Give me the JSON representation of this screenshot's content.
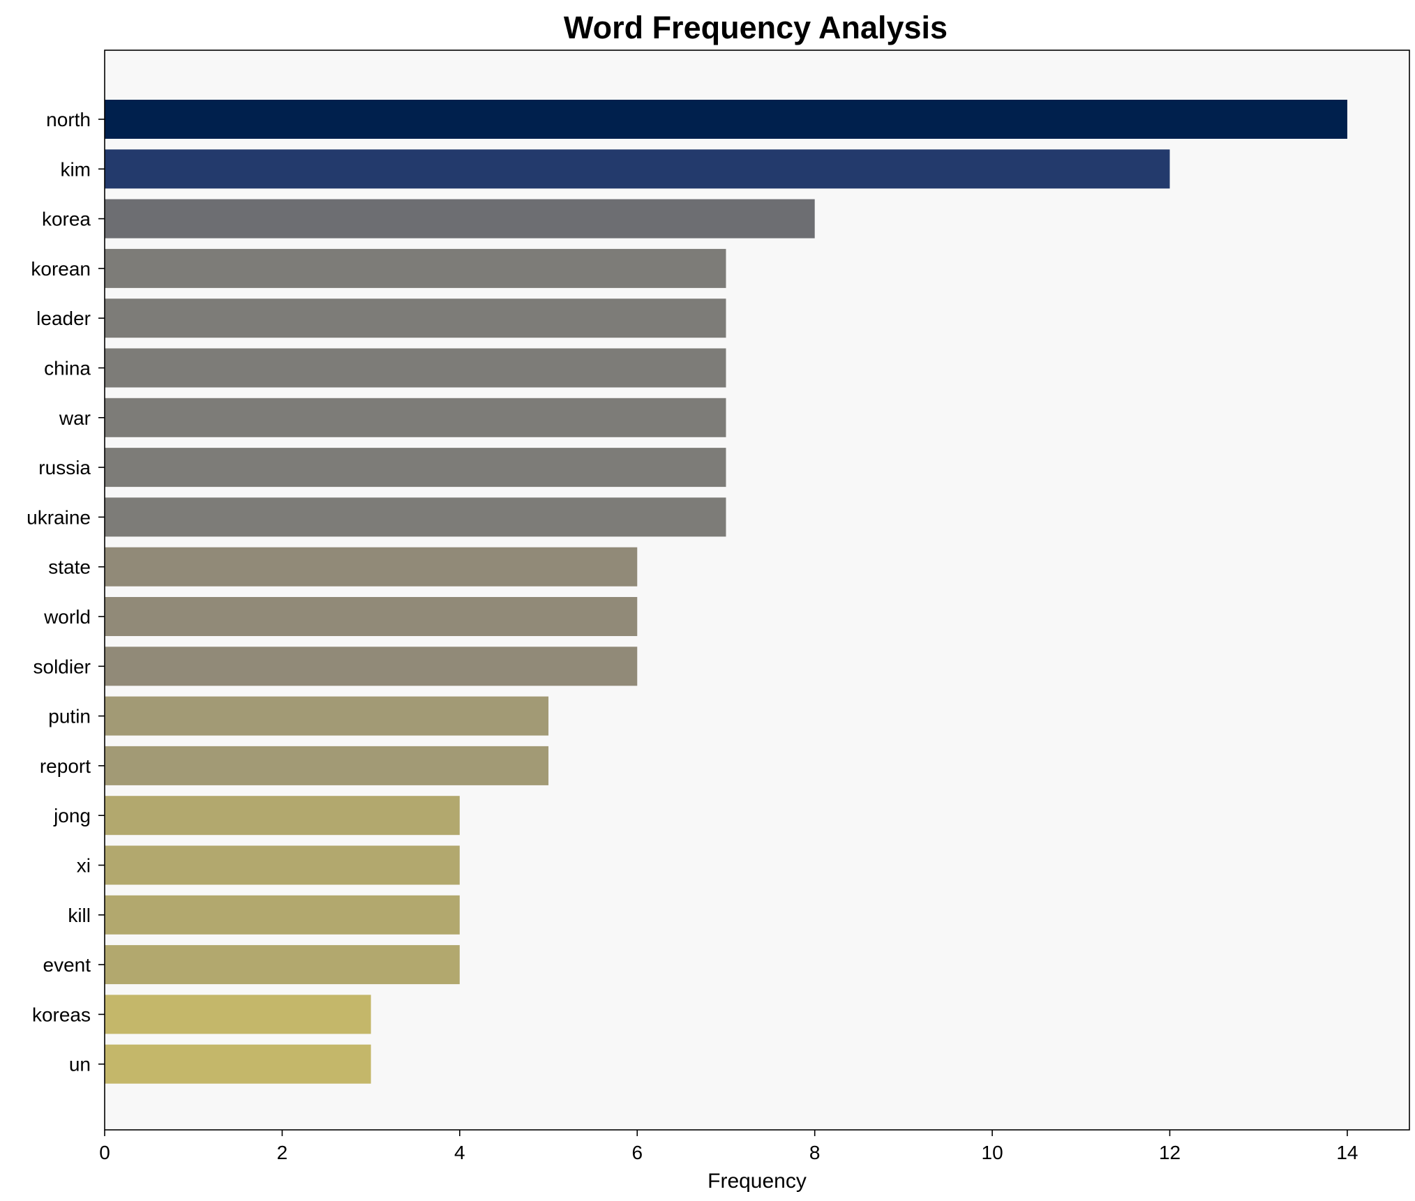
{
  "chart_data": {
    "type": "bar",
    "orientation": "horizontal",
    "title": "Word Frequency Analysis",
    "xlabel": "Frequency",
    "ylabel": "",
    "xlim": [
      0,
      14.7
    ],
    "xticks": [
      0,
      2,
      4,
      6,
      8,
      10,
      12,
      14
    ],
    "grid": false,
    "legend": "none",
    "plot_background": "#f8f8f8",
    "categories": [
      "north",
      "kim",
      "korea",
      "korean",
      "leader",
      "china",
      "war",
      "russia",
      "ukraine",
      "state",
      "world",
      "soldier",
      "putin",
      "report",
      "jong",
      "xi",
      "kill",
      "event",
      "koreas",
      "un"
    ],
    "values": [
      14,
      12,
      8,
      7,
      7,
      7,
      7,
      7,
      7,
      6,
      6,
      6,
      5,
      5,
      4,
      4,
      4,
      4,
      3,
      3
    ],
    "colors": [
      "#00204d",
      "#233a6c",
      "#6d6e72",
      "#7d7c78",
      "#7d7c78",
      "#7d7c78",
      "#7d7c78",
      "#7d7c78",
      "#7d7c78",
      "#918a78",
      "#918a78",
      "#918a78",
      "#a29a75",
      "#a29a75",
      "#b2a86e",
      "#b2a86e",
      "#b2a86e",
      "#b2a86e",
      "#c4b76a",
      "#c4b76a"
    ]
  }
}
